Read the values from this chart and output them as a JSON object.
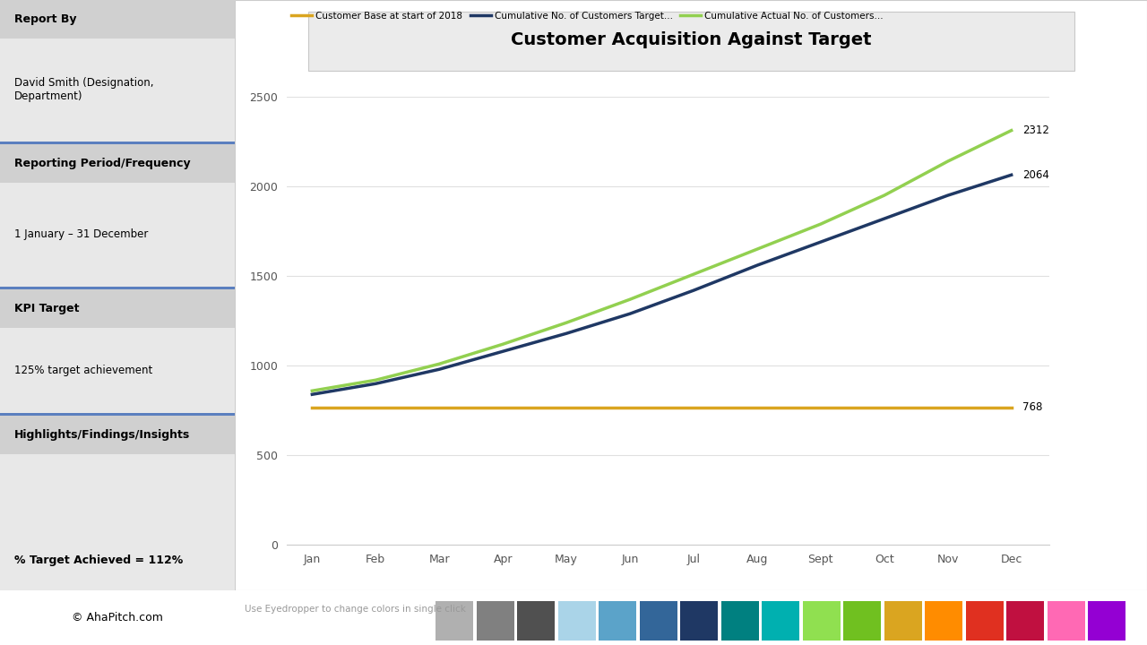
{
  "title": "Customer Acquisition Against Target",
  "months": [
    "Jan",
    "Feb",
    "Mar",
    "Apr",
    "May",
    "Jun",
    "Jul",
    "Aug",
    "Sept",
    "Oct",
    "Nov",
    "Dec"
  ],
  "baseline_value": 768,
  "baseline_label": "Customer Base at start of 2018",
  "target_values": [
    840,
    900,
    980,
    1080,
    1180,
    1290,
    1420,
    1560,
    1690,
    1820,
    1950,
    2064
  ],
  "target_label": "Cumulative No. of Customers Target...",
  "actual_values": [
    860,
    920,
    1010,
    1120,
    1240,
    1370,
    1510,
    1650,
    1790,
    1950,
    2140,
    2312
  ],
  "actual_label": "Cumulative Actual No. of Customers...",
  "baseline_color": "#DAA520",
  "target_color": "#1F3864",
  "actual_color": "#92D050",
  "ylim": [
    0,
    2500
  ],
  "yticks": [
    0,
    500,
    1000,
    1500,
    2000,
    2500
  ],
  "end_label_baseline": "768",
  "end_label_target": "2064",
  "end_label_actual": "2312",
  "left_panel_bg": "#5B7FBF",
  "section_labels": [
    "Report By",
    "Reporting Period/Frequency",
    "KPI Target",
    "Highlights/Findings/Insights"
  ],
  "section_content": [
    "David Smith (Designation,\nDepartment)",
    "1 January – 31 December",
    "125% target achievement",
    ""
  ],
  "footer_text": "© AhaPitch.com",
  "footer_bg": "#DAA520",
  "bottom_bar_text": "Use Eyedropper to change colors in single click",
  "bottom_bar_bg": "#F2F2F2",
  "pct_target": "% Target Achieved = 112%",
  "header_bg": "#D0D0D0",
  "content_bg": "#E8E8E8",
  "chart_outer_bg": "#F5F5F5",
  "title_box_bg": "#EBEBEB",
  "title_box_edge": "#C8C8C8",
  "color_swatches": [
    "#B0B0B0",
    "#808080",
    "#505050",
    "#AAD4E8",
    "#5BA3C9",
    "#336699",
    "#1F3864",
    "#008080",
    "#00B0B0",
    "#90E050",
    "#70C020",
    "#DAA520",
    "#FF8C00",
    "#E03020",
    "#C01040",
    "#FF69B4",
    "#9400D3"
  ]
}
